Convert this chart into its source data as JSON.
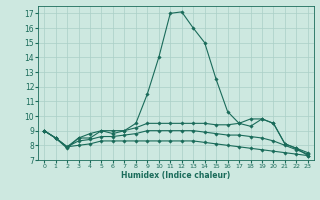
{
  "xlabel": "Humidex (Indice chaleur)",
  "background_color": "#cde8e0",
  "grid_color": "#aacfc7",
  "line_color": "#1a6b5a",
  "xlim": [
    -0.5,
    23.5
  ],
  "ylim": [
    7,
    17.5
  ],
  "yticks": [
    7,
    8,
    9,
    10,
    11,
    12,
    13,
    14,
    15,
    16,
    17
  ],
  "xticks": [
    0,
    1,
    2,
    3,
    4,
    5,
    6,
    7,
    8,
    9,
    10,
    11,
    12,
    13,
    14,
    15,
    16,
    17,
    18,
    19,
    20,
    21,
    22,
    23
  ],
  "line1_x": [
    0,
    1,
    2,
    3,
    4,
    5,
    6,
    7,
    8,
    9,
    10,
    11,
    12,
    13,
    14,
    15,
    16,
    17,
    18,
    19,
    20,
    21,
    22,
    23
  ],
  "line1_y": [
    9.0,
    8.5,
    7.8,
    8.5,
    8.5,
    9.0,
    8.8,
    9.0,
    9.5,
    11.5,
    14.0,
    17.0,
    17.1,
    16.0,
    15.0,
    12.5,
    10.3,
    9.5,
    9.8,
    9.8,
    9.5,
    8.1,
    7.8,
    7.3
  ],
  "line2_x": [
    0,
    1,
    2,
    3,
    4,
    5,
    6,
    7,
    8,
    9,
    10,
    11,
    12,
    13,
    14,
    15,
    16,
    17,
    18,
    19,
    20,
    21,
    22,
    23
  ],
  "line2_y": [
    9.0,
    8.5,
    7.9,
    8.5,
    8.8,
    9.0,
    9.0,
    9.0,
    9.2,
    9.5,
    9.5,
    9.5,
    9.5,
    9.5,
    9.5,
    9.4,
    9.4,
    9.5,
    9.3,
    9.8,
    9.5,
    8.1,
    7.8,
    7.5
  ],
  "line3_x": [
    0,
    1,
    2,
    3,
    4,
    5,
    6,
    7,
    8,
    9,
    10,
    11,
    12,
    13,
    14,
    15,
    16,
    17,
    18,
    19,
    20,
    21,
    22,
    23
  ],
  "line3_y": [
    9.0,
    8.5,
    7.9,
    8.3,
    8.4,
    8.6,
    8.6,
    8.7,
    8.8,
    9.0,
    9.0,
    9.0,
    9.0,
    9.0,
    8.9,
    8.8,
    8.7,
    8.7,
    8.6,
    8.5,
    8.3,
    8.0,
    7.7,
    7.4
  ],
  "line4_x": [
    0,
    1,
    2,
    3,
    4,
    5,
    6,
    7,
    8,
    9,
    10,
    11,
    12,
    13,
    14,
    15,
    16,
    17,
    18,
    19,
    20,
    21,
    22,
    23
  ],
  "line4_y": [
    9.0,
    8.5,
    7.9,
    8.0,
    8.1,
    8.3,
    8.3,
    8.3,
    8.3,
    8.3,
    8.3,
    8.3,
    8.3,
    8.3,
    8.2,
    8.1,
    8.0,
    7.9,
    7.8,
    7.7,
    7.6,
    7.5,
    7.4,
    7.3
  ]
}
